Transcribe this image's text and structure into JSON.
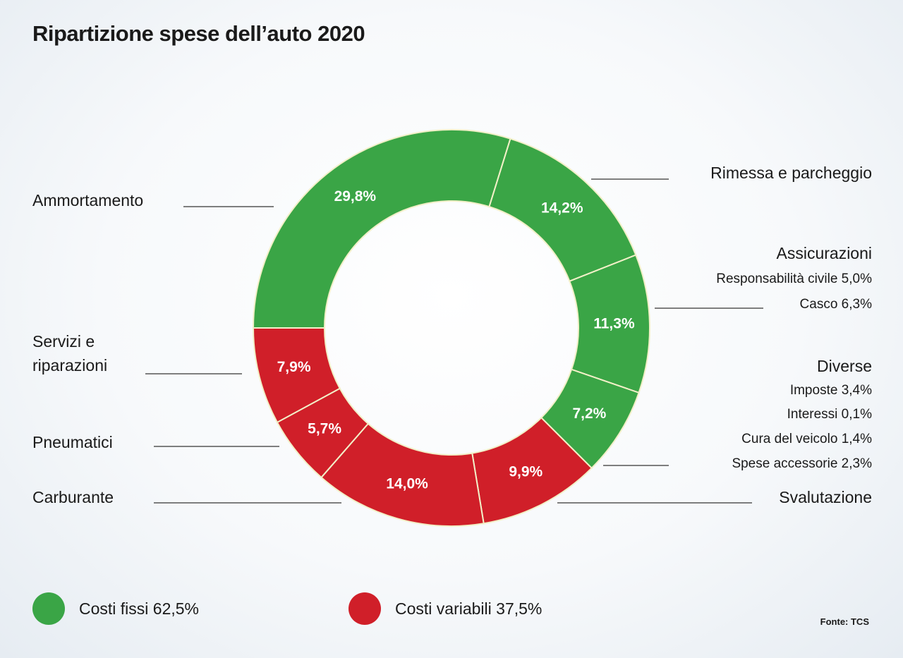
{
  "title": "Ripartizione spese dell’auto 2020",
  "chart_data": {
    "type": "pie",
    "title": "Ripartizione spese dell’auto 2020",
    "slices": [
      {
        "label": "Ammortamento",
        "value": 29.8,
        "value_label": "29,8%",
        "group": "fissi",
        "color": "#3aa546"
      },
      {
        "label": "Rimessa e parcheggio",
        "value": 14.2,
        "value_label": "14,2%",
        "group": "fissi",
        "color": "#3aa546"
      },
      {
        "label": "Assicurazioni",
        "value": 11.3,
        "value_label": "11,3%",
        "group": "fissi",
        "color": "#3aa546"
      },
      {
        "label": "Diverse",
        "value": 7.2,
        "value_label": "7,2%",
        "group": "fissi",
        "color": "#3aa546"
      },
      {
        "label": "Svalutazione",
        "value": 9.9,
        "value_label": "9,9%",
        "group": "variabili",
        "color": "#d01f29"
      },
      {
        "label": "Carburante",
        "value": 14.0,
        "value_label": "14,0%",
        "group": "variabili",
        "color": "#d01f29"
      },
      {
        "label": "Pneumatici",
        "value": 5.7,
        "value_label": "5,7%",
        "group": "variabili",
        "color": "#d01f29"
      },
      {
        "label": "Servizi e riparazioni",
        "value": 7.9,
        "value_label": "7,9%",
        "group": "variabili",
        "color": "#d01f29"
      }
    ]
  },
  "labels": {
    "ammortamento": "Ammortamento",
    "rimessa": "Rimessa e parcheggio",
    "assicurazioni": {
      "title": "Assicurazioni",
      "lines": [
        "Responsabilità civile 5,0%",
        "Casco 6,3%"
      ]
    },
    "diverse": {
      "title": "Diverse",
      "lines": [
        "Imposte 3,4%",
        "Interessi 0,1%",
        "Cura del veicolo 1,4%",
        "Spese accessorie 2,3%"
      ]
    },
    "servizi": [
      "Servizi e",
      "riparazioni"
    ],
    "pneumatici": "Pneumatici",
    "carburante": "Carburante",
    "svalutazione": "Svalutazione"
  },
  "legend": {
    "fissi": {
      "label": "Costi fissi 62,5%",
      "color": "#3aa546"
    },
    "variabili": {
      "label": "Costi variabili 37,5%",
      "color": "#d01f29"
    }
  },
  "source": "Fonte: TCS"
}
